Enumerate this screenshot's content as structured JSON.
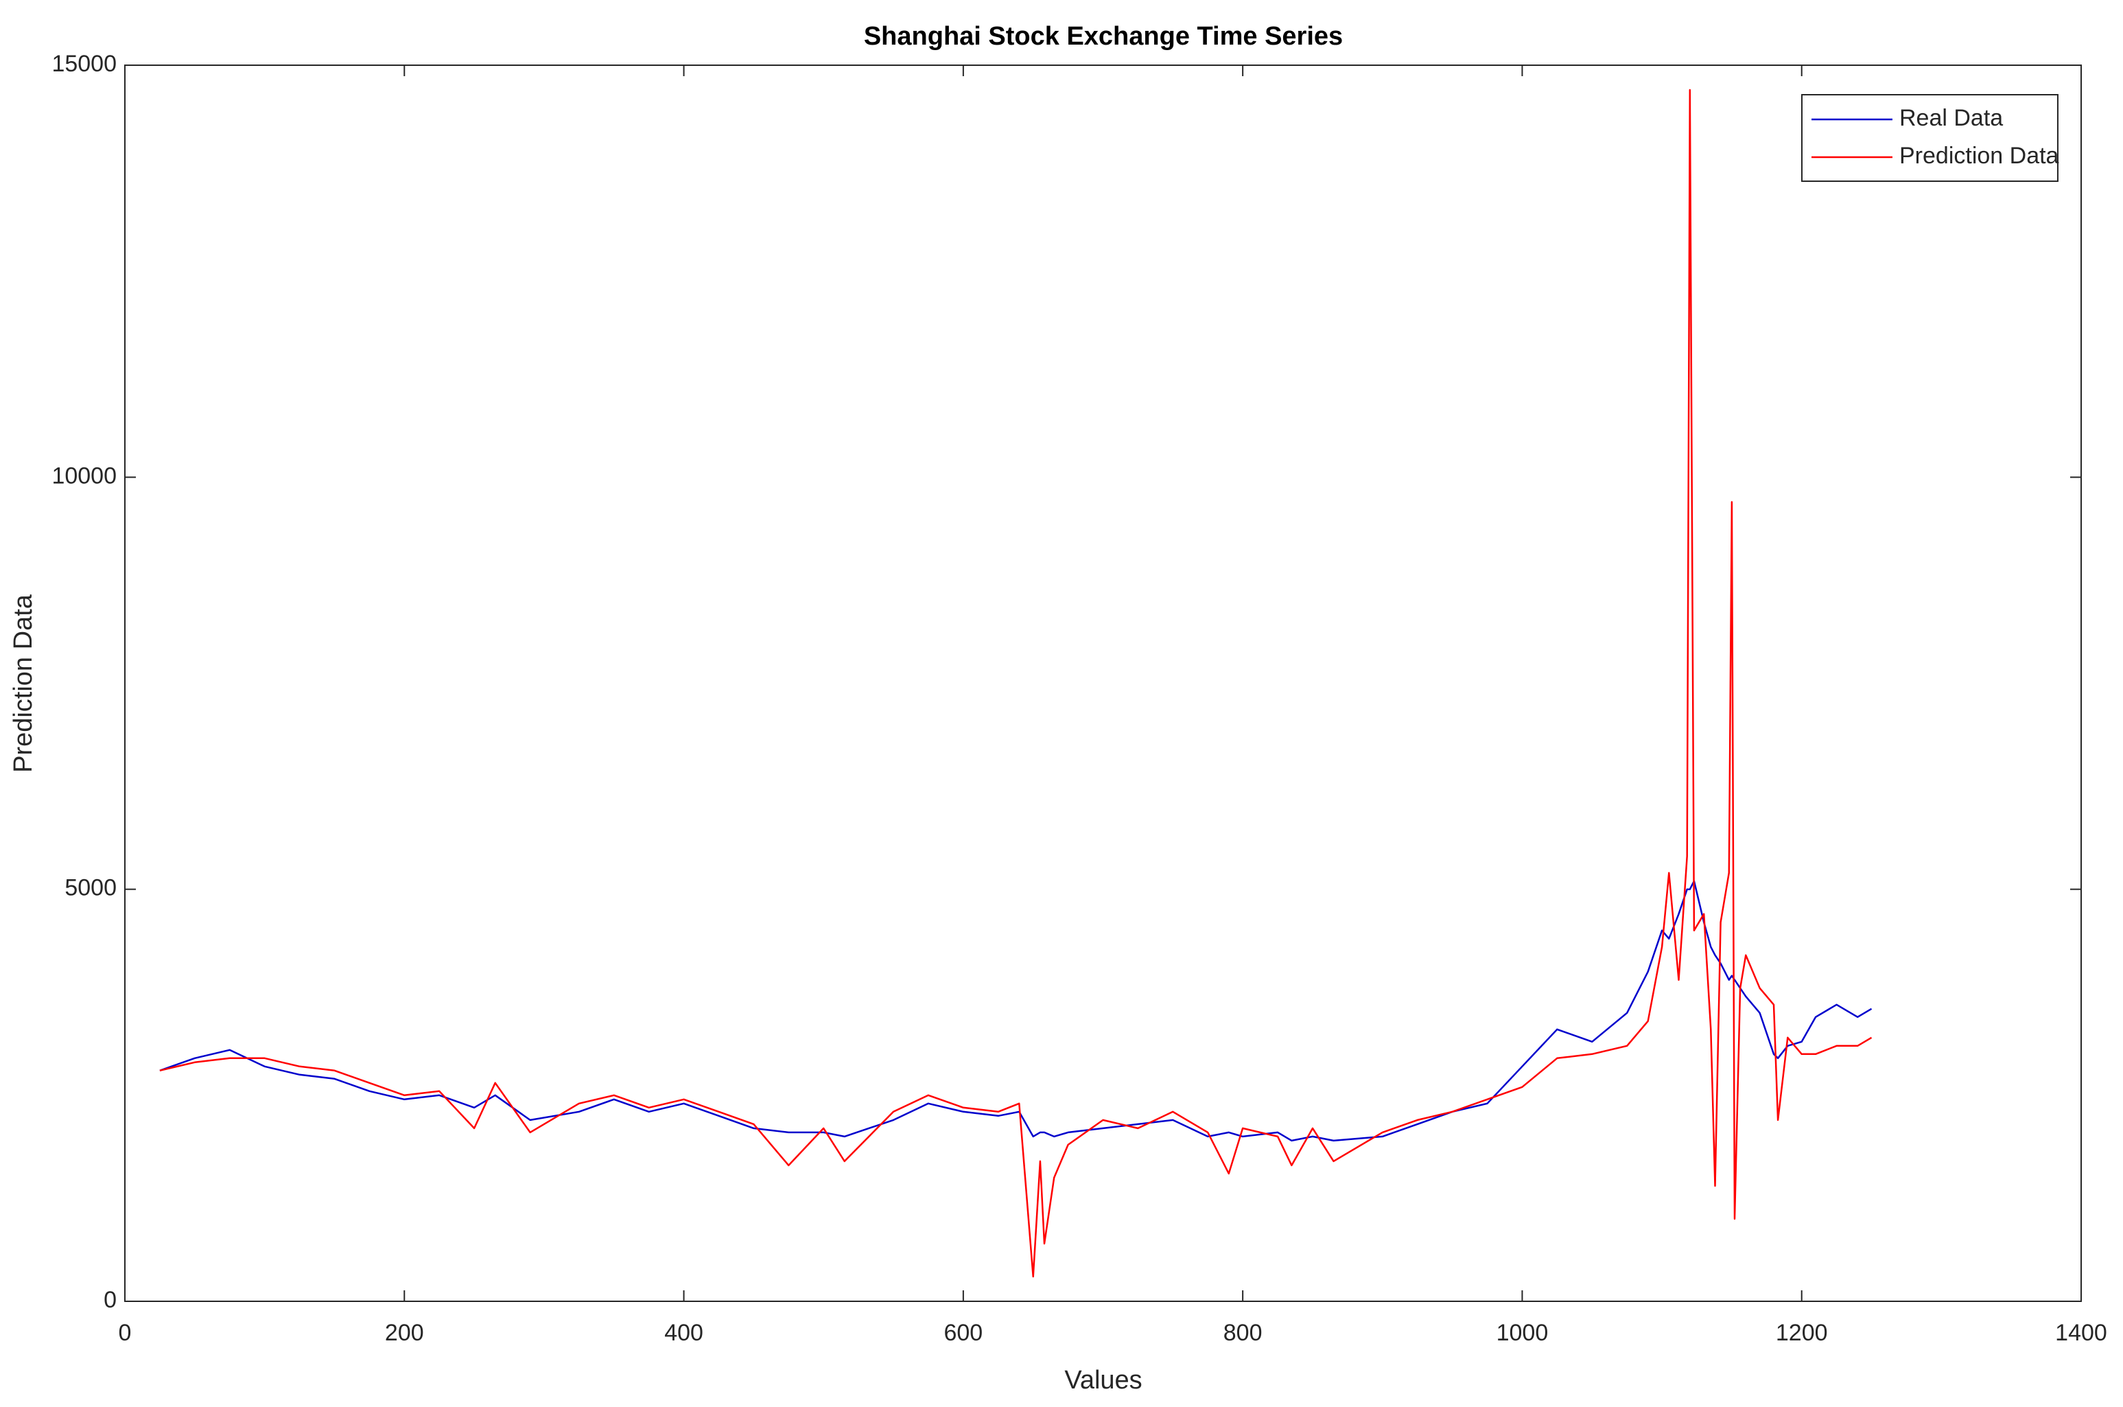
{
  "chart_data": {
    "type": "line",
    "title": "Shanghai Stock Exchange Time Series",
    "xlabel": "Values",
    "ylabel": "Prediction Data",
    "x": [
      25,
      50,
      75,
      100,
      125,
      150,
      175,
      200,
      225,
      250,
      265,
      290,
      325,
      350,
      375,
      400,
      425,
      450,
      475,
      500,
      515,
      550,
      575,
      600,
      625,
      640,
      650,
      655,
      658,
      665,
      675,
      700,
      725,
      750,
      775,
      790,
      800,
      825,
      835,
      850,
      865,
      900,
      925,
      950,
      975,
      1000,
      1025,
      1050,
      1075,
      1090,
      1100,
      1105,
      1112,
      1118,
      1120,
      1123,
      1130,
      1135,
      1138,
      1142,
      1148,
      1150,
      1152,
      1156,
      1160,
      1170,
      1180,
      1183,
      1190,
      1200,
      1210,
      1225,
      1240,
      1250
    ],
    "series": [
      {
        "name": "Real Data",
        "color": "#0000cc",
        "values": [
          2800,
          2950,
          3050,
          2850,
          2750,
          2700,
          2550,
          2450,
          2500,
          2350,
          2500,
          2200,
          2300,
          2450,
          2300,
          2400,
          2250,
          2100,
          2050,
          2050,
          2000,
          2200,
          2400,
          2300,
          2250,
          2300,
          2000,
          2050,
          2050,
          2000,
          2050,
          2100,
          2150,
          2200,
          2000,
          2050,
          2000,
          2050,
          1950,
          2000,
          1950,
          2000,
          2150,
          2300,
          2400,
          2850,
          3300,
          3150,
          3500,
          4000,
          4500,
          4400,
          4700,
          5000,
          5000,
          5100,
          4600,
          4300,
          4200,
          4100,
          3900,
          3950,
          3900,
          3800,
          3700,
          3500,
          3000,
          2950,
          3100,
          3150,
          3450,
          3600,
          3450,
          3550
        ]
      },
      {
        "name": "Prediction Data",
        "color": "#ff0000",
        "values": [
          2800,
          2900,
          2950,
          2950,
          2850,
          2800,
          2650,
          2500,
          2550,
          2100,
          2650,
          2050,
          2400,
          2500,
          2350,
          2450,
          2300,
          2150,
          1650,
          2100,
          1700,
          2300,
          2500,
          2350,
          2300,
          2400,
          300,
          1700,
          700,
          1500,
          1900,
          2200,
          2100,
          2300,
          2050,
          1550,
          2100,
          2000,
          1650,
          2100,
          1700,
          2050,
          2200,
          2300,
          2450,
          2600,
          2950,
          3000,
          3100,
          3400,
          4300,
          5200,
          3900,
          5400,
          14700,
          4500,
          4700,
          3300,
          1400,
          4600,
          5200,
          9700,
          1000,
          3800,
          4200,
          3800,
          3600,
          2200,
          3200,
          3000,
          3000,
          3100,
          3100,
          3200
        ]
      }
    ],
    "xlim": [
      0,
      1400
    ],
    "xticks": [
      0,
      200,
      400,
      600,
      800,
      1000,
      1200,
      1400
    ],
    "ylim": [
      0,
      15000
    ],
    "yticks": [
      0,
      5000,
      10000,
      15000
    ],
    "grid": false,
    "legend": "upper right"
  }
}
